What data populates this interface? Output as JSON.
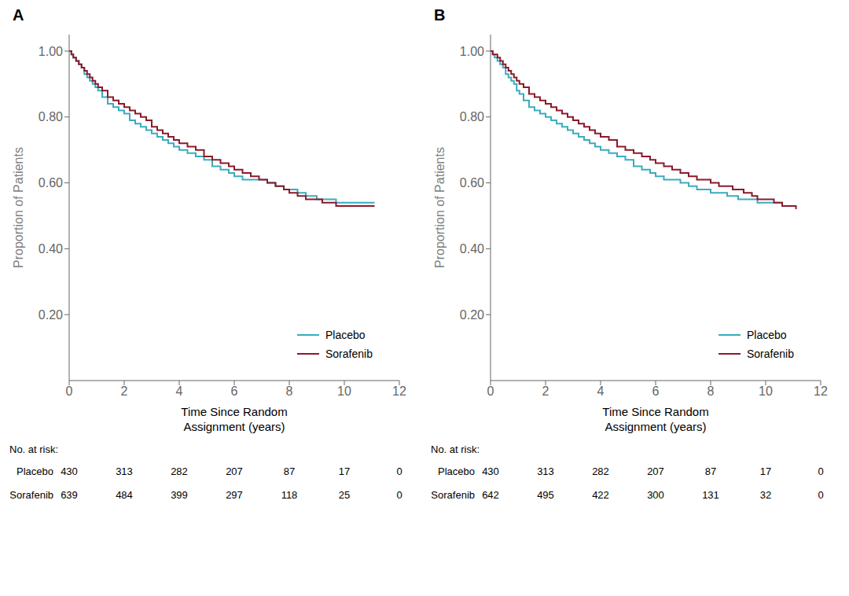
{
  "chart_data": [
    {
      "type": "line",
      "line_style": "step",
      "title": "A",
      "xlabel": "Time Since Random\nAssignment (years)",
      "ylabel": "Proportion of Patients",
      "x": [
        0,
        0.08,
        0.15,
        0.25,
        0.35,
        0.45,
        0.55,
        0.65,
        0.75,
        0.85,
        0.95,
        1.05,
        1.2,
        1.4,
        1.6,
        1.8,
        2.0,
        2.2,
        2.4,
        2.6,
        2.8,
        3.0,
        3.2,
        3.4,
        3.6,
        3.8,
        4.0,
        4.3,
        4.6,
        4.9,
        5.2,
        5.5,
        5.8,
        6.0,
        6.3,
        6.6,
        6.9,
        7.2,
        7.5,
        7.8,
        8.0,
        8.3,
        8.6,
        8.8,
        9.0,
        9.2,
        9.5,
        9.7,
        10.0,
        10.3,
        10.6,
        10.9,
        11.1
      ],
      "series": [
        {
          "name": "Placebo",
          "color": "#3AACBE",
          "values": [
            1.0,
            0.99,
            0.98,
            0.97,
            0.96,
            0.95,
            0.93,
            0.92,
            0.91,
            0.9,
            0.89,
            0.88,
            0.86,
            0.84,
            0.83,
            0.82,
            0.81,
            0.79,
            0.78,
            0.77,
            0.76,
            0.75,
            0.74,
            0.73,
            0.72,
            0.71,
            0.7,
            0.69,
            0.68,
            0.67,
            0.65,
            0.64,
            0.63,
            0.62,
            0.61,
            0.61,
            0.61,
            0.6,
            0.59,
            0.58,
            0.58,
            0.57,
            0.56,
            0.56,
            0.55,
            0.55,
            0.55,
            0.54,
            0.54,
            0.54,
            0.54,
            0.54,
            0.54
          ]
        },
        {
          "name": "Sorafenib",
          "color": "#8B1A2B",
          "values": [
            1.0,
            0.99,
            0.98,
            0.97,
            0.96,
            0.95,
            0.94,
            0.93,
            0.92,
            0.91,
            0.9,
            0.89,
            0.88,
            0.86,
            0.85,
            0.84,
            0.83,
            0.82,
            0.81,
            0.8,
            0.79,
            0.77,
            0.76,
            0.75,
            0.74,
            0.73,
            0.72,
            0.71,
            0.7,
            0.68,
            0.67,
            0.66,
            0.65,
            0.64,
            0.63,
            0.62,
            0.61,
            0.6,
            0.59,
            0.58,
            0.57,
            0.56,
            0.55,
            0.55,
            0.55,
            0.54,
            0.54,
            0.53,
            0.53,
            0.53,
            0.53,
            0.53,
            0.53
          ]
        }
      ],
      "xlim": [
        0,
        12
      ],
      "xticks": [
        0,
        2,
        4,
        6,
        8,
        10,
        12
      ],
      "ylim": [
        0.0,
        1.05
      ],
      "yticks": [
        {
          "value": 0.2,
          "label": "0.20"
        },
        {
          "value": 0.4,
          "label": "0.40"
        },
        {
          "value": 0.6,
          "label": "0.60"
        },
        {
          "value": 0.8,
          "label": "0.80"
        },
        {
          "value": 1.0,
          "label": "1.00"
        }
      ],
      "legend": "lower right",
      "grid": false,
      "risk_table": {
        "header": "No. at risk:",
        "rows": [
          {
            "name": "Placebo",
            "values": [
              430,
              313,
              282,
              207,
              87,
              17,
              0
            ]
          },
          {
            "name": "Sorafenib",
            "values": [
              639,
              484,
              399,
              297,
              118,
              25,
              0
            ]
          }
        ]
      }
    },
    {
      "type": "line",
      "line_style": "step",
      "title": "B",
      "xlabel": "Time Since Random\nAssignment (years)",
      "ylabel": "Proportion of Patients",
      "x": [
        0,
        0.08,
        0.15,
        0.25,
        0.35,
        0.45,
        0.55,
        0.65,
        0.75,
        0.85,
        0.95,
        1.05,
        1.2,
        1.4,
        1.6,
        1.8,
        2.0,
        2.2,
        2.4,
        2.6,
        2.8,
        3.0,
        3.2,
        3.4,
        3.6,
        3.8,
        4.0,
        4.3,
        4.6,
        4.9,
        5.2,
        5.5,
        5.8,
        6.0,
        6.3,
        6.6,
        6.9,
        7.2,
        7.5,
        7.8,
        8.0,
        8.3,
        8.6,
        8.8,
        9.0,
        9.2,
        9.5,
        9.7,
        10.0,
        10.3,
        10.6,
        10.9,
        11.1
      ],
      "series": [
        {
          "name": "Placebo",
          "color": "#3AACBE",
          "values": [
            1.0,
            0.99,
            0.98,
            0.97,
            0.96,
            0.95,
            0.93,
            0.92,
            0.91,
            0.9,
            0.88,
            0.87,
            0.85,
            0.83,
            0.82,
            0.81,
            0.8,
            0.79,
            0.78,
            0.77,
            0.76,
            0.75,
            0.74,
            0.73,
            0.72,
            0.71,
            0.7,
            0.69,
            0.68,
            0.67,
            0.65,
            0.64,
            0.63,
            0.62,
            0.61,
            0.61,
            0.6,
            0.59,
            0.58,
            0.58,
            0.57,
            0.57,
            0.56,
            0.56,
            0.55,
            0.55,
            0.55,
            0.54,
            0.54,
            0.54,
            0.53,
            0.53,
            0.53
          ]
        },
        {
          "name": "Sorafenib",
          "color": "#8B1A2B",
          "values": [
            1.0,
            0.99,
            0.99,
            0.98,
            0.97,
            0.96,
            0.95,
            0.94,
            0.93,
            0.92,
            0.91,
            0.9,
            0.89,
            0.87,
            0.86,
            0.85,
            0.84,
            0.83,
            0.82,
            0.81,
            0.8,
            0.79,
            0.78,
            0.77,
            0.76,
            0.75,
            0.74,
            0.73,
            0.71,
            0.7,
            0.69,
            0.68,
            0.67,
            0.66,
            0.65,
            0.64,
            0.63,
            0.62,
            0.61,
            0.61,
            0.6,
            0.59,
            0.59,
            0.58,
            0.58,
            0.57,
            0.56,
            0.55,
            0.55,
            0.54,
            0.53,
            0.53,
            0.52
          ]
        }
      ],
      "xlim": [
        0,
        12
      ],
      "xticks": [
        0,
        2,
        4,
        6,
        8,
        10,
        12
      ],
      "ylim": [
        0.0,
        1.05
      ],
      "yticks": [
        {
          "value": 0.2,
          "label": "0.20"
        },
        {
          "value": 0.4,
          "label": "0.40"
        },
        {
          "value": 0.6,
          "label": "0.60"
        },
        {
          "value": 0.8,
          "label": "0.80"
        },
        {
          "value": 1.0,
          "label": "1.00"
        }
      ],
      "legend": "lower right",
      "grid": false,
      "risk_table": {
        "header": "No. at risk:",
        "rows": [
          {
            "name": "Placebo",
            "values": [
              430,
              313,
              282,
              207,
              87,
              17,
              0
            ]
          },
          {
            "name": "Sorafenib",
            "values": [
              642,
              495,
              422,
              300,
              131,
              32,
              0
            ]
          }
        ]
      }
    }
  ]
}
